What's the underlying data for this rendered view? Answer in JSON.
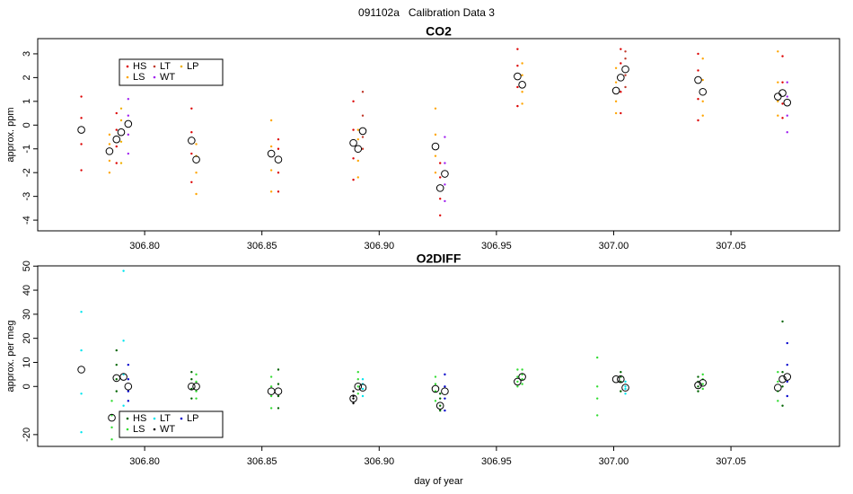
{
  "title": "091102a   Calibration Data 3",
  "chart_data": [
    {
      "type": "scatter",
      "title": "CO2",
      "ylabel": "approx. ppm",
      "xlim": [
        306.7544,
        307.0963
      ],
      "ylim": [
        -4.45,
        3.64
      ],
      "xticks": [
        {
          "value": 306.8,
          "label": "306.80"
        },
        {
          "value": 306.85,
          "label": "306.85"
        },
        {
          "value": 306.9,
          "label": "306.90"
        },
        {
          "value": 306.95,
          "label": "306.95"
        },
        {
          "value": 307.0,
          "label": "307.00"
        },
        {
          "value": 307.05,
          "label": "307.05"
        }
      ],
      "yticks": [
        -4,
        -3,
        -2,
        -1,
        0,
        1,
        2,
        3
      ],
      "legend": "upper left",
      "series": [
        {
          "name": "HS",
          "color": "#dd0000",
          "x": [
            306.773,
            306.773,
            306.773,
            306.773,
            306.788,
            306.788,
            306.788,
            306.788,
            306.82,
            306.82,
            306.82,
            306.82,
            306.857,
            306.857,
            306.857,
            306.857,
            306.889,
            306.889,
            306.889,
            306.889,
            306.926,
            306.926,
            306.926,
            306.926,
            306.959,
            306.959,
            306.959,
            306.959,
            307.003,
            307.003,
            307.003,
            307.003,
            307.036,
            307.036,
            307.036,
            307.036,
            307.072,
            307.072,
            307.072,
            307.072
          ],
          "values": [
            -1.9,
            -0.8,
            0.3,
            1.2,
            -1.6,
            -0.9,
            -0.2,
            0.5,
            -2.4,
            -1.2,
            -0.3,
            0.7,
            -2.8,
            -2.0,
            -1.0,
            -0.6,
            -2.3,
            -1.4,
            -0.2,
            1.0,
            -3.8,
            -3.1,
            -2.2,
            -1.6,
            0.8,
            1.6,
            2.5,
            3.2,
            0.5,
            1.4,
            2.6,
            3.2,
            0.2,
            1.1,
            2.3,
            3.0,
            0.3,
            0.9,
            1.8,
            2.9
          ]
        },
        {
          "name": "LS",
          "color": "#ffa500",
          "x": [
            306.785,
            306.785,
            306.785,
            306.785,
            306.822,
            306.822,
            306.822,
            306.822,
            306.854,
            306.854,
            306.854,
            306.854,
            306.891,
            306.891,
            306.891,
            306.891,
            306.924,
            306.924,
            306.924,
            306.924,
            306.961,
            306.961,
            306.961,
            306.961,
            307.001,
            307.001,
            307.001,
            307.001,
            307.038,
            307.038,
            307.038,
            307.038,
            307.07,
            307.07,
            307.07,
            307.07
          ],
          "values": [
            -2.0,
            -1.5,
            -0.8,
            -0.4,
            -2.9,
            -2.0,
            -1.3,
            -0.8,
            -2.8,
            -1.9,
            -0.9,
            0.2,
            -2.2,
            -1.5,
            -0.6,
            -0.2,
            -2.0,
            -1.3,
            -0.4,
            0.7,
            0.9,
            1.4,
            2.1,
            2.6,
            0.5,
            1.0,
            1.8,
            2.4,
            0.4,
            1.0,
            1.9,
            2.8,
            0.4,
            1.0,
            1.8,
            3.1
          ]
        },
        {
          "name": "LT",
          "color": "#c0392b",
          "x": [
            306.893,
            306.893,
            306.893,
            306.893,
            307.005,
            307.005,
            307.005,
            307.005
          ],
          "values": [
            -1.0,
            -0.5,
            0.4,
            1.4,
            1.6,
            2.1,
            2.8,
            3.1
          ]
        },
        {
          "name": "WT",
          "color": "#a020f0",
          "x": [
            306.793,
            306.793,
            306.793,
            306.793,
            306.928,
            306.928,
            306.928,
            306.928,
            307.074,
            307.074,
            307.074,
            307.074
          ],
          "values": [
            -1.2,
            -0.4,
            0.4,
            1.1,
            -3.2,
            -2.5,
            -1.6,
            -0.5,
            -0.3,
            0.4,
            1.2,
            1.8
          ]
        },
        {
          "name": "LP",
          "color": "#f0b000",
          "x": [
            306.79,
            306.79,
            306.79,
            306.79
          ],
          "values": [
            -1.6,
            -0.7,
            0.2,
            0.7
          ]
        }
      ],
      "means": {
        "x": [
          306.773,
          306.785,
          306.788,
          306.79,
          306.793,
          306.82,
          306.822,
          306.854,
          306.857,
          306.889,
          306.891,
          306.893,
          306.924,
          306.926,
          306.928,
          306.959,
          306.961,
          307.001,
          307.003,
          307.005,
          307.036,
          307.038,
          307.07,
          307.072,
          307.074
        ],
        "values": [
          -0.2,
          -1.1,
          -0.6,
          -0.3,
          0.05,
          -0.65,
          -1.45,
          -1.2,
          -1.45,
          -0.75,
          -1.0,
          -0.25,
          -0.9,
          -2.65,
          -2.05,
          2.05,
          1.7,
          1.45,
          2.0,
          2.35,
          1.9,
          1.4,
          1.2,
          1.35,
          0.95
        ]
      }
    },
    {
      "type": "scatter",
      "title": "O2DIFF",
      "ylabel": "approx. per meg",
      "xlabel": "day of year",
      "xlim": [
        306.7544,
        307.0963
      ],
      "ylim": [
        -24.9,
        50.1
      ],
      "xticks": [
        {
          "value": 306.8,
          "label": "306.80"
        },
        {
          "value": 306.85,
          "label": "306.85"
        },
        {
          "value": 306.9,
          "label": "306.90"
        },
        {
          "value": 306.95,
          "label": "306.95"
        },
        {
          "value": 307.0,
          "label": "307.00"
        },
        {
          "value": 307.05,
          "label": "307.05"
        }
      ],
      "yticks": [
        -20,
        0,
        10,
        20,
        30,
        40,
        50
      ],
      "legend": "lower left",
      "series": [
        {
          "name": "HS",
          "color": "#006400",
          "x": [
            306.788,
            306.788,
            306.788,
            306.788,
            306.82,
            306.82,
            306.82,
            306.82,
            306.857,
            306.857,
            306.857,
            306.857,
            306.926,
            306.926,
            306.926,
            306.926,
            307.003,
            307.003,
            307.003,
            307.003,
            307.036,
            307.036,
            307.036,
            307.036,
            307.072,
            307.072,
            307.072,
            307.072
          ],
          "values": [
            -2,
            3,
            9,
            15,
            -5,
            -1,
            3,
            6,
            -9,
            -4,
            1,
            7,
            -10,
            -8,
            -5,
            -3,
            -2,
            2,
            4,
            6,
            -2,
            0,
            2,
            4,
            -8,
            0,
            6,
            27
          ]
        },
        {
          "name": "LS",
          "color": "#33dd33",
          "x": [
            306.786,
            306.786,
            306.786,
            306.786,
            306.822,
            306.822,
            306.822,
            306.822,
            306.854,
            306.854,
            306.854,
            306.854,
            306.891,
            306.891,
            306.891,
            306.891,
            306.924,
            306.924,
            306.924,
            306.924,
            306.959,
            306.959,
            306.959,
            306.959,
            306.961,
            306.961,
            306.961,
            306.961,
            306.993,
            306.993,
            306.993,
            306.993,
            307.038,
            307.038,
            307.038,
            307.038,
            307.07,
            307.07,
            307.07,
            307.07
          ],
          "values": [
            -22,
            -17,
            -12,
            -6,
            -5,
            -2,
            2,
            5,
            -9,
            -4,
            0,
            4,
            -3,
            0,
            3,
            6,
            -6,
            -2,
            1,
            4,
            0,
            2,
            4,
            7,
            1,
            3,
            5,
            7,
            -12,
            -5,
            0,
            12,
            -1,
            1,
            3,
            5,
            -6,
            -2,
            2,
            6
          ]
        },
        {
          "name": "LT",
          "color": "#00e5ee",
          "x": [
            306.773,
            306.773,
            306.773,
            306.773,
            306.791,
            306.791,
            306.791,
            306.791,
            306.893,
            306.893,
            306.893,
            306.893,
            307.005,
            307.005,
            307.005,
            307.005
          ],
          "values": [
            -19,
            -3,
            15,
            31,
            -8,
            5,
            19,
            48,
            -4,
            -1,
            1,
            3,
            -3,
            -1,
            0,
            2
          ]
        },
        {
          "name": "WT",
          "color": "#000000",
          "x": [
            306.889,
            306.889,
            306.889,
            306.889
          ],
          "values": [
            -7,
            -5,
            -4,
            -2
          ]
        },
        {
          "name": "LP",
          "color": "#0000cc",
          "x": [
            306.793,
            306.793,
            306.793,
            306.793,
            306.928,
            306.928,
            306.928,
            306.928,
            307.074,
            307.074,
            307.074,
            307.074
          ],
          "values": [
            -6,
            -2,
            3,
            9,
            -10,
            -5,
            0,
            5,
            -4,
            2,
            9,
            18
          ]
        }
      ],
      "means": {
        "x": [
          306.773,
          306.786,
          306.788,
          306.791,
          306.793,
          306.82,
          306.822,
          306.854,
          306.857,
          306.889,
          306.891,
          306.893,
          306.924,
          306.926,
          306.928,
          306.959,
          306.961,
          307.001,
          307.003,
          307.005,
          307.036,
          307.038,
          307.07,
          307.072,
          307.074
        ],
        "values": [
          7,
          -13,
          3.5,
          4,
          0,
          0,
          0,
          -2,
          -2,
          -5,
          0,
          -0.5,
          -1,
          -8,
          -2,
          2,
          4,
          3,
          3,
          -0.5,
          0.5,
          1.5,
          -0.5,
          3,
          4
        ]
      }
    }
  ]
}
